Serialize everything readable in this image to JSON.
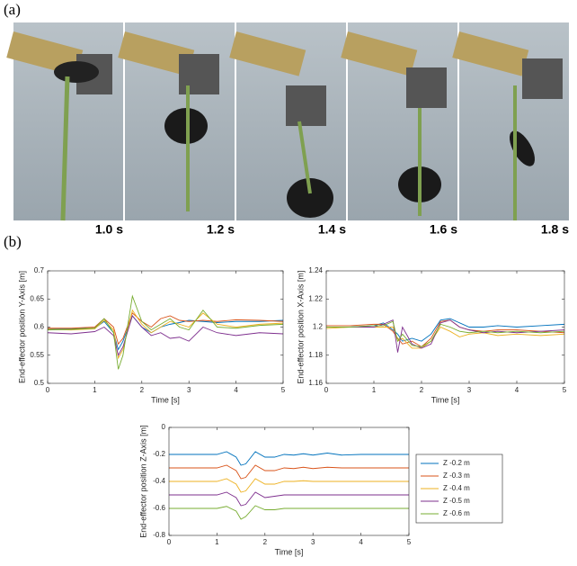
{
  "panel_labels": [
    "(a)",
    "(b)"
  ],
  "frames": [
    "1.0 s",
    "1.2 s",
    "1.4 s",
    "1.6 s",
    "1.8 s"
  ],
  "chart_data": [
    {
      "type": "line",
      "xlabel": "Time [s]",
      "ylabel": "End-effector position Y-Axis [m]",
      "x": [
        0,
        0.5,
        1,
        1.2,
        1.4,
        1.5,
        1.6,
        1.8,
        2,
        2.2,
        2.4,
        2.6,
        2.8,
        3,
        3.3,
        3.6,
        4,
        4.5,
        5
      ],
      "xlim": [
        0,
        5
      ],
      "xticks": [
        0,
        1,
        2,
        3,
        4,
        5
      ],
      "ylim": [
        0.5,
        0.7
      ],
      "yticks": [
        0.5,
        0.55,
        0.6,
        0.65,
        0.7
      ],
      "series": [
        {
          "color": "#0072bd",
          "values": [
            0.597,
            0.597,
            0.598,
            0.61,
            0.59,
            0.56,
            0.575,
            0.62,
            0.6,
            0.59,
            0.6,
            0.605,
            0.608,
            0.612,
            0.61,
            0.608,
            0.61,
            0.61,
            0.612
          ]
        },
        {
          "color": "#d95319",
          "values": [
            0.598,
            0.598,
            0.6,
            0.615,
            0.6,
            0.57,
            0.58,
            0.625,
            0.61,
            0.6,
            0.615,
            0.62,
            0.612,
            0.61,
            0.612,
            0.61,
            0.613,
            0.612,
            0.61
          ]
        },
        {
          "color": "#edb120",
          "values": [
            0.596,
            0.595,
            0.597,
            0.612,
            0.595,
            0.545,
            0.56,
            0.63,
            0.605,
            0.59,
            0.6,
            0.61,
            0.605,
            0.6,
            0.625,
            0.605,
            0.6,
            0.605,
            0.607
          ]
        },
        {
          "color": "#7e2f8e",
          "values": [
            0.59,
            0.588,
            0.592,
            0.6,
            0.585,
            0.55,
            0.565,
            0.62,
            0.6,
            0.585,
            0.59,
            0.58,
            0.582,
            0.575,
            0.6,
            0.59,
            0.585,
            0.59,
            0.588
          ]
        },
        {
          "color": "#77ac30",
          "values": [
            0.595,
            0.596,
            0.598,
            0.615,
            0.59,
            0.525,
            0.55,
            0.655,
            0.61,
            0.595,
            0.605,
            0.615,
            0.6,
            0.595,
            0.63,
            0.6,
            0.598,
            0.603,
            0.605
          ]
        }
      ]
    },
    {
      "type": "line",
      "xlabel": "Time [s]",
      "ylabel": "End-effector position X-Axis [m]",
      "x": [
        0,
        0.5,
        1,
        1.2,
        1.4,
        1.5,
        1.6,
        1.8,
        2,
        2.2,
        2.4,
        2.6,
        2.8,
        3,
        3.3,
        3.6,
        4,
        4.5,
        5
      ],
      "xlim": [
        0,
        5
      ],
      "xticks": [
        0,
        1,
        2,
        3,
        4,
        5
      ],
      "ylim": [
        1.16,
        1.24
      ],
      "yticks": [
        1.16,
        1.18,
        1.2,
        1.22,
        1.24
      ],
      "series": [
        {
          "color": "#0072bd",
          "values": [
            1.2,
            1.2,
            1.201,
            1.203,
            1.198,
            1.195,
            1.19,
            1.192,
            1.19,
            1.195,
            1.205,
            1.206,
            1.203,
            1.2,
            1.2,
            1.201,
            1.2,
            1.201,
            1.202
          ]
        },
        {
          "color": "#d95319",
          "values": [
            1.201,
            1.201,
            1.202,
            1.202,
            1.197,
            1.192,
            1.188,
            1.19,
            1.186,
            1.192,
            1.204,
            1.205,
            1.2,
            1.198,
            1.197,
            1.198,
            1.198,
            1.197,
            1.196
          ]
        },
        {
          "color": "#edb120",
          "values": [
            1.199,
            1.2,
            1.2,
            1.2,
            1.2,
            1.19,
            1.192,
            1.185,
            1.185,
            1.19,
            1.2,
            1.197,
            1.193,
            1.195,
            1.196,
            1.194,
            1.195,
            1.194,
            1.195
          ]
        },
        {
          "color": "#7e2f8e",
          "values": [
            1.2,
            1.2,
            1.2,
            1.202,
            1.205,
            1.182,
            1.2,
            1.188,
            1.185,
            1.188,
            1.203,
            1.205,
            1.2,
            1.198,
            1.196,
            1.197,
            1.196,
            1.197,
            1.198
          ]
        },
        {
          "color": "#77ac30",
          "values": [
            1.2,
            1.2,
            1.201,
            1.201,
            1.204,
            1.19,
            1.195,
            1.187,
            1.186,
            1.19,
            1.202,
            1.2,
            1.197,
            1.196,
            1.197,
            1.196,
            1.197,
            1.196,
            1.197
          ]
        }
      ]
    },
    {
      "type": "line",
      "xlabel": "Time [s]",
      "ylabel": "End-effector position Z-Axis [m]",
      "legend": "outside right",
      "x": [
        0,
        0.5,
        1,
        1.2,
        1.4,
        1.5,
        1.6,
        1.8,
        2,
        2.2,
        2.4,
        2.6,
        2.8,
        3,
        3.3,
        3.6,
        4,
        4.5,
        5
      ],
      "xlim": [
        0,
        5
      ],
      "xticks": [
        0,
        1,
        2,
        3,
        4,
        5
      ],
      "ylim": [
        -0.8,
        0
      ],
      "yticks": [
        -0.8,
        -0.6,
        -0.4,
        -0.2,
        0
      ],
      "series": [
        {
          "name": "Z -0.2 m",
          "color": "#0072bd",
          "values": [
            -0.2,
            -0.2,
            -0.2,
            -0.18,
            -0.22,
            -0.28,
            -0.27,
            -0.18,
            -0.22,
            -0.22,
            -0.2,
            -0.205,
            -0.195,
            -0.205,
            -0.19,
            -0.205,
            -0.2,
            -0.2,
            -0.2
          ]
        },
        {
          "name": "Z -0.3 m",
          "color": "#d95319",
          "values": [
            -0.3,
            -0.3,
            -0.3,
            -0.28,
            -0.32,
            -0.38,
            -0.37,
            -0.28,
            -0.32,
            -0.32,
            -0.3,
            -0.305,
            -0.295,
            -0.305,
            -0.295,
            -0.3,
            -0.3,
            -0.3,
            -0.3
          ]
        },
        {
          "name": "Z -0.4 m",
          "color": "#edb120",
          "values": [
            -0.4,
            -0.4,
            -0.4,
            -0.38,
            -0.42,
            -0.48,
            -0.47,
            -0.38,
            -0.42,
            -0.42,
            -0.4,
            -0.4,
            -0.395,
            -0.4,
            -0.4,
            -0.4,
            -0.4,
            -0.4,
            -0.4
          ]
        },
        {
          "name": "Z -0.5 m",
          "color": "#7e2f8e",
          "values": [
            -0.5,
            -0.5,
            -0.5,
            -0.48,
            -0.52,
            -0.58,
            -0.57,
            -0.48,
            -0.52,
            -0.51,
            -0.5,
            -0.5,
            -0.5,
            -0.5,
            -0.5,
            -0.5,
            -0.5,
            -0.5,
            -0.5
          ]
        },
        {
          "name": "Z -0.6 m",
          "color": "#77ac30",
          "values": [
            -0.6,
            -0.6,
            -0.6,
            -0.585,
            -0.62,
            -0.68,
            -0.66,
            -0.58,
            -0.61,
            -0.61,
            -0.6,
            -0.6,
            -0.6,
            -0.6,
            -0.6,
            -0.6,
            -0.6,
            -0.6,
            -0.6
          ]
        }
      ]
    }
  ]
}
